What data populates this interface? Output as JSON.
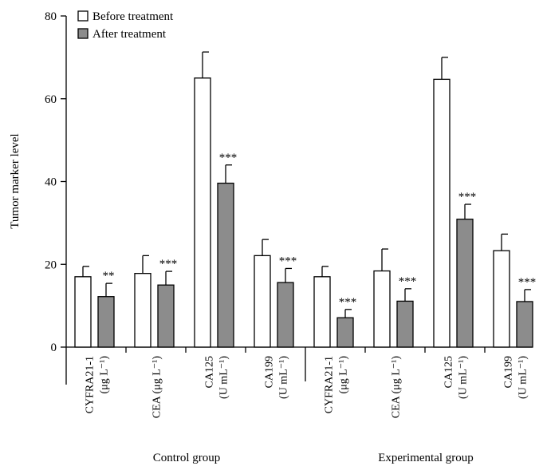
{
  "chart_data": {
    "type": "bar",
    "ylabel": "Tumor marker level",
    "ylim": [
      0,
      80
    ],
    "yticks": [
      0,
      20,
      40,
      60,
      80
    ],
    "grid": false,
    "legend_placement": "top-left",
    "legend": [
      {
        "label": "Before treatment",
        "color": "#ffffff"
      },
      {
        "label": "After treatment",
        "color": "#8c8c8c"
      }
    ],
    "groups": [
      {
        "name": "Control group",
        "categories": [
          {
            "lines": [
              "CYFRA21-1",
              "(μg L⁻¹)"
            ],
            "before": 17,
            "before_err": 2.5,
            "after": 12.2,
            "after_err": 3.2,
            "sig": "**"
          },
          {
            "lines": [
              "CEA (μg L⁻¹)"
            ],
            "before": 17.8,
            "before_err": 4.3,
            "after": 15,
            "after_err": 3.3,
            "sig": "***"
          },
          {
            "lines": [
              "CA125",
              "(U mL⁻¹)"
            ],
            "before": 65,
            "before_err": 6.3,
            "after": 39.6,
            "after_err": 4.4,
            "sig": "***"
          },
          {
            "lines": [
              "CA199",
              "(U mL⁻¹)"
            ],
            "before": 22.1,
            "before_err": 3.9,
            "after": 15.6,
            "after_err": 3.4,
            "sig": "***"
          }
        ]
      },
      {
        "name": "Experimental group",
        "categories": [
          {
            "lines": [
              "CYFRA21-1",
              "(μg L⁻¹)"
            ],
            "before": 17,
            "before_err": 2.5,
            "after": 7.1,
            "after_err": 2,
            "sig": "***"
          },
          {
            "lines": [
              "CEA (μg L⁻¹)"
            ],
            "before": 18.4,
            "before_err": 5.3,
            "after": 11.1,
            "after_err": 3,
            "sig": "***"
          },
          {
            "lines": [
              "CA125",
              "(U mL⁻¹)"
            ],
            "before": 64.7,
            "before_err": 5.3,
            "after": 30.9,
            "after_err": 3.6,
            "sig": "***"
          },
          {
            "lines": [
              "CA199",
              "(U mL⁻¹)"
            ],
            "before": 23.3,
            "before_err": 4,
            "after": 11,
            "after_err": 2.9,
            "sig": "***"
          }
        ]
      }
    ]
  }
}
